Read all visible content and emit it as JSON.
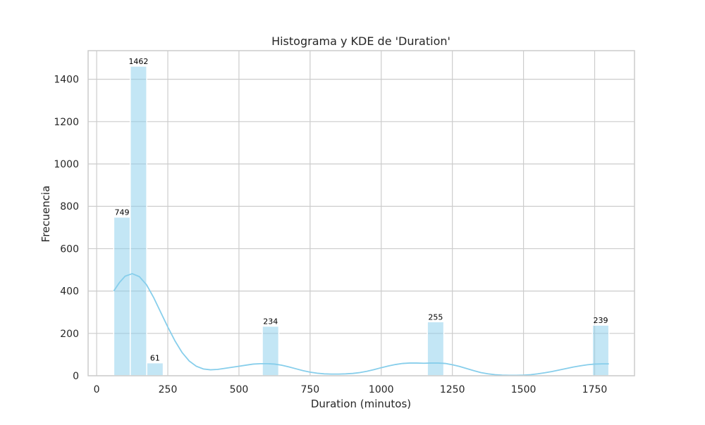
{
  "chart_data": {
    "type": "bar",
    "title": "Histograma y KDE de 'Duration'",
    "xlabel": "Duration (minutos)",
    "ylabel": "Frecuencia",
    "xlim": [
      -30,
      1890
    ],
    "ylim": [
      0,
      1535
    ],
    "grid": true,
    "xticks": [
      0,
      250,
      500,
      750,
      1000,
      1250,
      1500,
      1750
    ],
    "yticks": [
      0,
      200,
      400,
      600,
      800,
      1000,
      1200,
      1400
    ],
    "xtick_labels": [
      "0",
      "250",
      "500",
      "750",
      "1000",
      "1250",
      "1500",
      "1750"
    ],
    "ytick_labels": [
      "0",
      "200",
      "400",
      "600",
      "800",
      "1000",
      "1200",
      "1400"
    ],
    "bars": [
      {
        "x0": 60,
        "x1": 118,
        "value": 749,
        "label": "749"
      },
      {
        "x0": 118,
        "x1": 176,
        "value": 1462,
        "label": "1462"
      },
      {
        "x0": 176,
        "x1": 234,
        "value": 61,
        "label": "61"
      },
      {
        "x0": 582,
        "x1": 640,
        "value": 234,
        "label": "234"
      },
      {
        "x0": 1162,
        "x1": 1220,
        "value": 255,
        "label": "255"
      },
      {
        "x0": 1742,
        "x1": 1800,
        "value": 239,
        "label": "239"
      }
    ],
    "kde": {
      "x": [
        60,
        80,
        100,
        125,
        150,
        175,
        200,
        225,
        250,
        275,
        300,
        325,
        350,
        375,
        400,
        425,
        450,
        475,
        500,
        525,
        550,
        575,
        600,
        625,
        650,
        675,
        700,
        725,
        750,
        775,
        800,
        825,
        850,
        875,
        900,
        925,
        950,
        975,
        1000,
        1025,
        1050,
        1075,
        1100,
        1125,
        1150,
        1175,
        1200,
        1225,
        1250,
        1275,
        1300,
        1325,
        1350,
        1375,
        1400,
        1425,
        1450,
        1475,
        1500,
        1525,
        1550,
        1575,
        1600,
        1625,
        1650,
        1675,
        1700,
        1725,
        1750,
        1775,
        1800
      ],
      "y": [
        400,
        440,
        470,
        482,
        468,
        430,
        370,
        300,
        230,
        165,
        110,
        70,
        45,
        32,
        28,
        30,
        35,
        40,
        45,
        50,
        55,
        57,
        57,
        55,
        50,
        42,
        33,
        24,
        17,
        12,
        9,
        8,
        8,
        9,
        11,
        15,
        21,
        29,
        38,
        46,
        53,
        58,
        60,
        60,
        59,
        60,
        60,
        58,
        52,
        44,
        34,
        24,
        15,
        9,
        5,
        3,
        2,
        2,
        3,
        5,
        9,
        14,
        20,
        27,
        34,
        41,
        47,
        52,
        55,
        56,
        56
      ]
    },
    "colors": {
      "bar": "#87ceeb",
      "bar_opacity": 0.5,
      "kde": "#87ceeb",
      "grid": "#cccccc",
      "axes_edge": "#cccccc"
    }
  }
}
